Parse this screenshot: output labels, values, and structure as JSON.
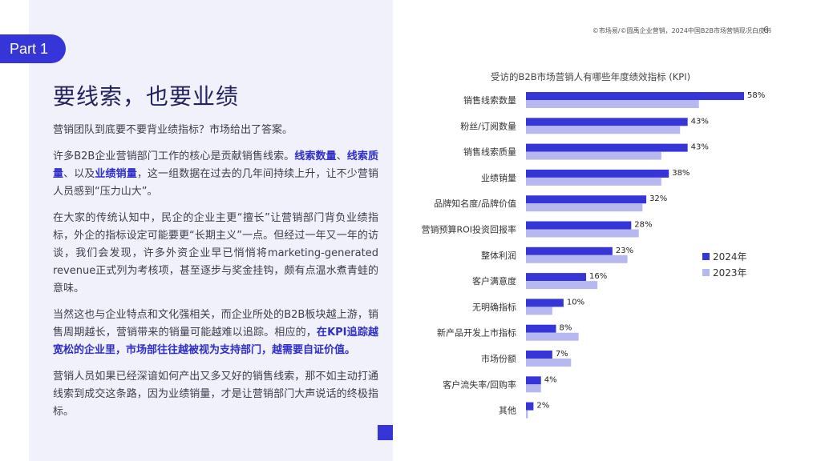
{
  "part_label": "Part 1",
  "header_source": "©市场易/©圆禹企业营销，2024中国B2B市场营销现况白皮书",
  "page_number": "6",
  "headline": "要线索，也要业绩",
  "paragraphs": {
    "p1": "营销团队到底要不要背业绩指标？市场给出了答案。",
    "p2a": "许多B2B企业营销部门工作的核心是贡献销售线索。",
    "p2b1": "线索数量",
    "p2c": "、",
    "p2b2": "线索质量",
    "p2d": "、以及",
    "p2b3": "业绩销量",
    "p2e": "，这一组数据在过去的几年间持续上升，让不少营销人员感到“压力山大”。",
    "p3": "在大家的传统认知中，民企的企业主更“擅长”让营销部门背负业绩指标，外企的指标设定可能要更“长期主义”一点。但经过一年又一年的访谈，我们会发现，许多外资企业早已悄悄将marketing-generated revenue正式列为考核项，甚至逐步与奖金挂钩，颇有点温水煮青蛙的意味。",
    "p4a": "当然这也与企业特点和文化强相关，而企业所处的B2B板块越上游，销售周期越长，营销带来的销量可能越难以追踪。相应的，",
    "p4b": "在KPI追踪越宽松的企业里，市场部往往越被视为支持部门，越需要自证价值。",
    "p5": "营销人员如果已经深谙如何产出又多又好的销售线索，那不如主动打通线索到成交这条路，因为业绩销量，才是让营销部门大声说话的终极指标。"
  },
  "chart_data": {
    "type": "bar",
    "orientation": "horizontal",
    "title": "受访的B2B市场营销人有哪些年度绩效指标 (KPI)",
    "categories": [
      "销售线索数量",
      "粉丝/订阅数量",
      "销售线索质量",
      "业绩销量",
      "品牌知名度/品牌价值",
      "营销预算ROI投资回报率",
      "整体利润",
      "客户满意度",
      "无明确指标",
      "新产品开发上市指标",
      "市场份额",
      "客户流失率/回购率",
      "其他"
    ],
    "series": [
      {
        "name": "2024年",
        "color": "#3535d8",
        "values": [
          58,
          43,
          43,
          38,
          32,
          28,
          23,
          16,
          10,
          8,
          7,
          4,
          2
        ]
      },
      {
        "name": "2023年",
        "color": "#b8b8f0",
        "values": [
          46,
          41,
          36,
          36,
          31,
          30,
          27,
          19,
          7,
          14,
          12,
          4,
          0.5
        ]
      }
    ],
    "value_labels": [
      "58%",
      "43%",
      "43%",
      "38%",
      "32%",
      "28%",
      "23%",
      "16%",
      "10%",
      "8%",
      "7%",
      "4%",
      "2%"
    ],
    "xlim": [
      0,
      60
    ],
    "legend_position": "right",
    "grid": false
  }
}
